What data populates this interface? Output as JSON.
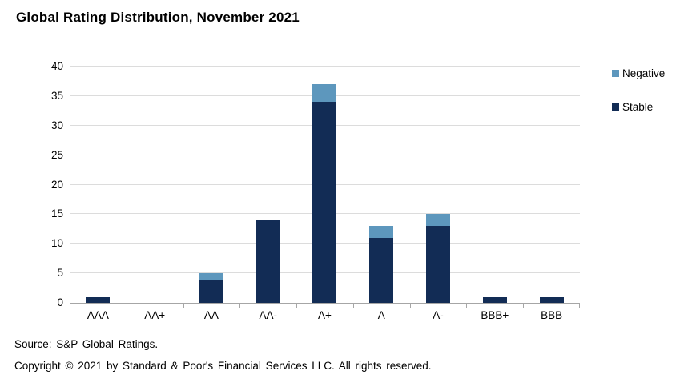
{
  "title": "Global Rating Distribution, November 2021",
  "legend": [
    {
      "label": "Negative",
      "color": "#5d97bd"
    },
    {
      "label": "Stable",
      "color": "#122c55"
    }
  ],
  "footer": {
    "source": "Source: S&P Global Ratings.",
    "copyright": "Copyright © 2021 by Standard & Poor's Financial Services LLC. All rights reserved."
  },
  "chart_data": {
    "type": "bar",
    "stacked": true,
    "title": "Global Rating Distribution, November 2021",
    "categories": [
      "AAA",
      "AA+",
      "AA",
      "AA-",
      "A+",
      "A",
      "A-",
      "BBB+",
      "BBB"
    ],
    "series": [
      {
        "name": "Stable",
        "color": "#122c55",
        "values": [
          1,
          0,
          4,
          14,
          34,
          11,
          13,
          1,
          1
        ]
      },
      {
        "name": "Negative",
        "color": "#5d97bd",
        "values": [
          0,
          0,
          1,
          0,
          3,
          2,
          2,
          0,
          0
        ]
      }
    ],
    "totals": [
      1,
      0,
      5,
      14,
      37,
      13,
      15,
      1,
      1
    ],
    "xlabel": "",
    "ylabel": "",
    "ylim": [
      0,
      40
    ],
    "yticks": [
      0,
      5,
      10,
      15,
      20,
      25,
      30,
      35,
      40
    ],
    "grid": true,
    "gridline_color": "#dcdcdc",
    "axis_color": "#a6a6a6",
    "legend_position": "right"
  }
}
